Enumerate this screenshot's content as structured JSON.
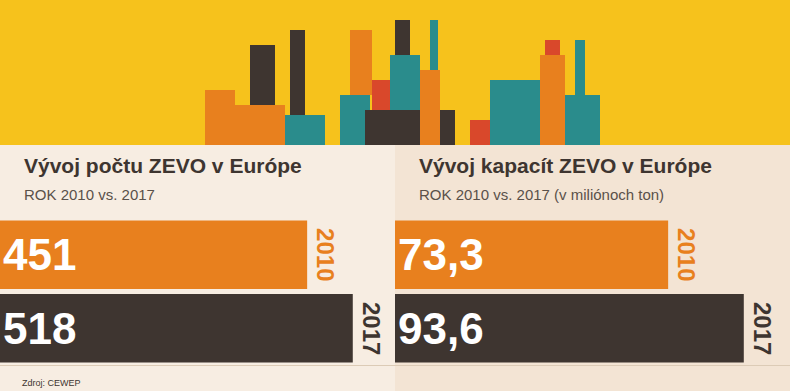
{
  "source": "Zdroj: CEWEP",
  "chart_data": [
    {
      "type": "bar",
      "orientation": "horizontal",
      "title": "Vývoj počtu ZEVO v Európe",
      "subtitle": "ROK 2010 vs. 2017",
      "categories": [
        "2010",
        "2017"
      ],
      "values": [
        451,
        518
      ],
      "colors": [
        "#e8801e",
        "#3e3530"
      ],
      "xlim": [
        0,
        580
      ],
      "data_labels": true,
      "tick_labels": false
    },
    {
      "type": "bar",
      "orientation": "horizontal",
      "title": "Vývoj kapacít ZEVO v Európe",
      "subtitle": "ROK 2010 vs. 2017 (v miliónoch ton)",
      "categories": [
        "2010",
        "2017"
      ],
      "values": [
        73.3,
        93.6
      ],
      "value_labels": [
        "73,3",
        "93,6"
      ],
      "colors": [
        "#e8801e",
        "#3e3530"
      ],
      "xlim": [
        0,
        106
      ],
      "data_labels": true,
      "tick_labels": false
    }
  ]
}
